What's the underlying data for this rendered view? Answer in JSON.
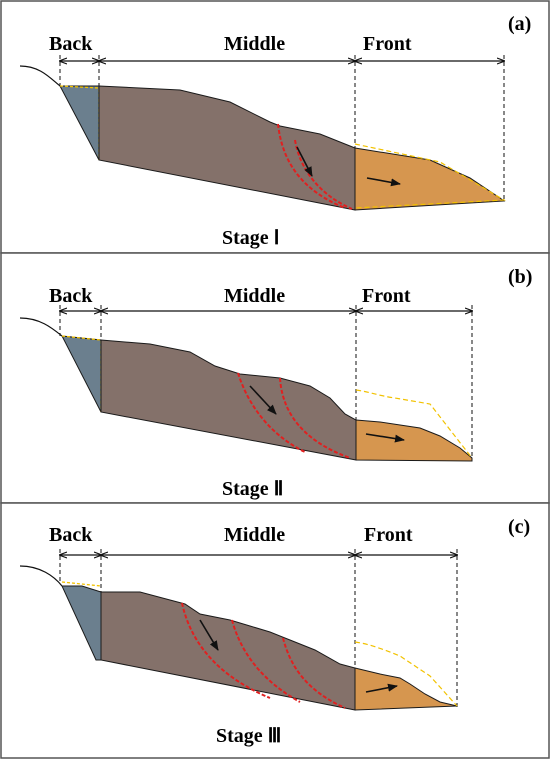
{
  "panels": [
    {
      "label": "(a)",
      "stage": "Stage Ⅰ",
      "zones": [
        "Back",
        "Middle",
        "Front"
      ]
    },
    {
      "label": "(b)",
      "stage": "Stage Ⅱ",
      "zones": [
        "Back",
        "Middle",
        "Front"
      ]
    },
    {
      "label": "(c)",
      "stage": "Stage Ⅲ",
      "zones": [
        "Back",
        "Middle",
        "Front"
      ]
    }
  ],
  "colors": {
    "back_block": "#6b7f8e",
    "middle_block": "#84716a",
    "front_deposit": "#d6964f",
    "failure_surface": "#e02020",
    "original_profile": "#f2c200",
    "outline": "#1a1a1a",
    "frame": "#555555"
  }
}
